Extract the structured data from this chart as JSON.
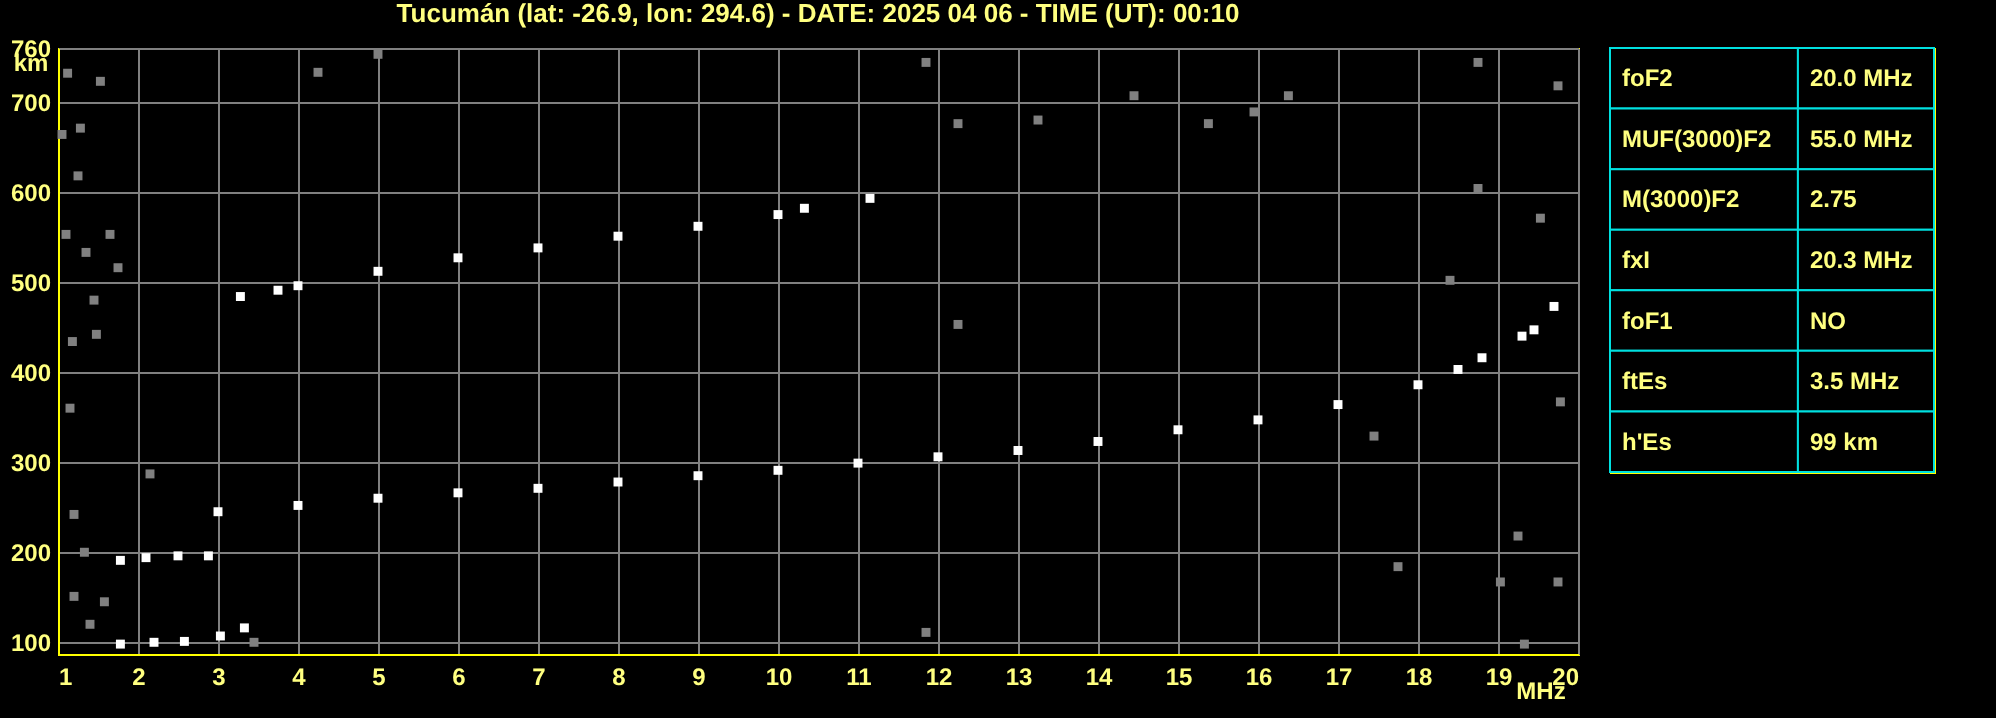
{
  "chart_data": [
    {
      "type": "scatter",
      "title": "Tucumán (lat: -26.9, lon: 294.6) - DATE: 2025 04 06 - TIME (UT): 00:10",
      "xlabel": "MHz",
      "ylabel": "km",
      "xlim": [
        1,
        20
      ],
      "ylim": [
        87,
        760
      ],
      "xticks": [
        1,
        2,
        3,
        4,
        5,
        6,
        7,
        8,
        9,
        10,
        11,
        12,
        13,
        14,
        15,
        16,
        17,
        18,
        19,
        20
      ],
      "yticks": [
        100,
        200,
        300,
        400,
        500,
        600,
        700,
        760
      ],
      "grid": true,
      "marker": "square",
      "series": [
        {
          "color": "#ffffff",
          "x": [
            3.0,
            4.0,
            5.0,
            6.0,
            7.0,
            8.0,
            9.0,
            10.0,
            11.0,
            12.0,
            13.0,
            14.0,
            15.0,
            16.0,
            17.0,
            18.0,
            18.5,
            18.8,
            19.3,
            19.45,
            19.7
          ],
          "values": [
            245,
            252,
            260,
            266,
            271,
            278,
            285,
            291,
            299,
            306,
            313,
            323,
            336,
            347,
            364,
            386,
            403,
            416,
            440,
            447,
            473
          ]
        },
        {
          "color": "#ffffff",
          "x": [
            3.28,
            3.75,
            4.0,
            5.0,
            6.0,
            7.0,
            8.0,
            9.0,
            10.0,
            10.33,
            11.15
          ],
          "values": [
            484,
            491,
            496,
            512,
            527,
            538,
            551,
            562,
            575,
            582,
            593
          ]
        },
        {
          "color": "#ffffff",
          "x": [
            1.78,
            2.2,
            2.58,
            3.03,
            3.33
          ],
          "values": [
            98,
            100,
            101,
            107,
            116
          ]
        },
        {
          "color": "#ffffff",
          "x": [
            1.78,
            2.1,
            2.5,
            2.88
          ],
          "values": [
            191,
            194,
            196,
            196
          ]
        },
        {
          "color": "#808080",
          "x": [
            1.12,
            1.53,
            1.05,
            1.28,
            1.25,
            1.1,
            1.35,
            1.65,
            1.75,
            1.45,
            1.48,
            1.18,
            4.25,
            5.0,
            11.85,
            12.25,
            13.25,
            14.45,
            15.38,
            15.95,
            16.38,
            18.75,
            19.75,
            18.75,
            19.53,
            12.25,
            18.4,
            1.15,
            1.2,
            1.33,
            1.2,
            1.58,
            2.15,
            1.4,
            3.45,
            17.45,
            17.75,
            19.25,
            19.03,
            19.75,
            11.85,
            19.33,
            19.78
          ],
          "values": [
            732,
            723,
            664,
            671,
            618,
            553,
            533,
            553,
            516,
            480,
            442,
            434,
            733,
            753,
            744,
            676,
            680,
            707,
            676,
            689,
            707,
            744,
            718,
            604,
            571,
            453,
            502,
            360,
            242,
            200,
            151,
            145,
            287,
            120,
            100,
            329,
            184,
            218,
            167,
            167,
            111,
            98,
            367
          ]
        }
      ]
    },
    {
      "type": "other",
      "annotations": [
        "foF2",
        "20.0 MHz",
        "MUF(3000)F2",
        "55.0 MHz",
        "M(3000)F2",
        "2.75",
        "fxI",
        "20.3 MHz",
        "foF1",
        "NO",
        "ftEs",
        "3.5 MHz",
        "h'Es",
        "99 km"
      ]
    }
  ]
}
